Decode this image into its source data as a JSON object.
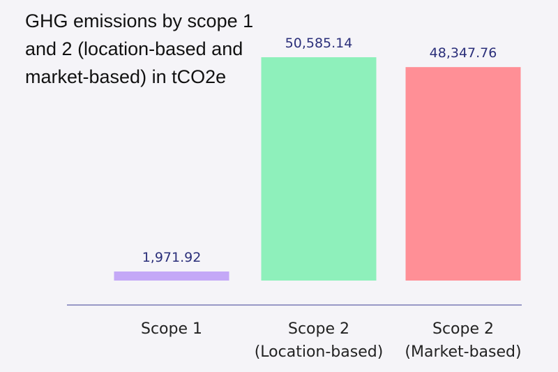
{
  "chart_data": {
    "type": "bar",
    "title": "GHG emissions by scope 1 and 2 (location-based and market-based) in tCO2e",
    "categories": [
      [
        "Scope 1"
      ],
      [
        "Scope 2",
        "(Location-based)"
      ],
      [
        "Scope 2",
        "(Market-based)"
      ]
    ],
    "values": [
      1971.92,
      50585.14,
      48347.76
    ],
    "data_labels": [
      "1,971.92",
      "50,585.14",
      "48,347.76"
    ],
    "colors": [
      "#c4a8f7",
      "#8ef0bb",
      "#ff8f96"
    ],
    "label_color": "#2b2f7a",
    "axis_color": "#7a79b5",
    "xlabel": "",
    "ylabel": "",
    "grid": false
  }
}
